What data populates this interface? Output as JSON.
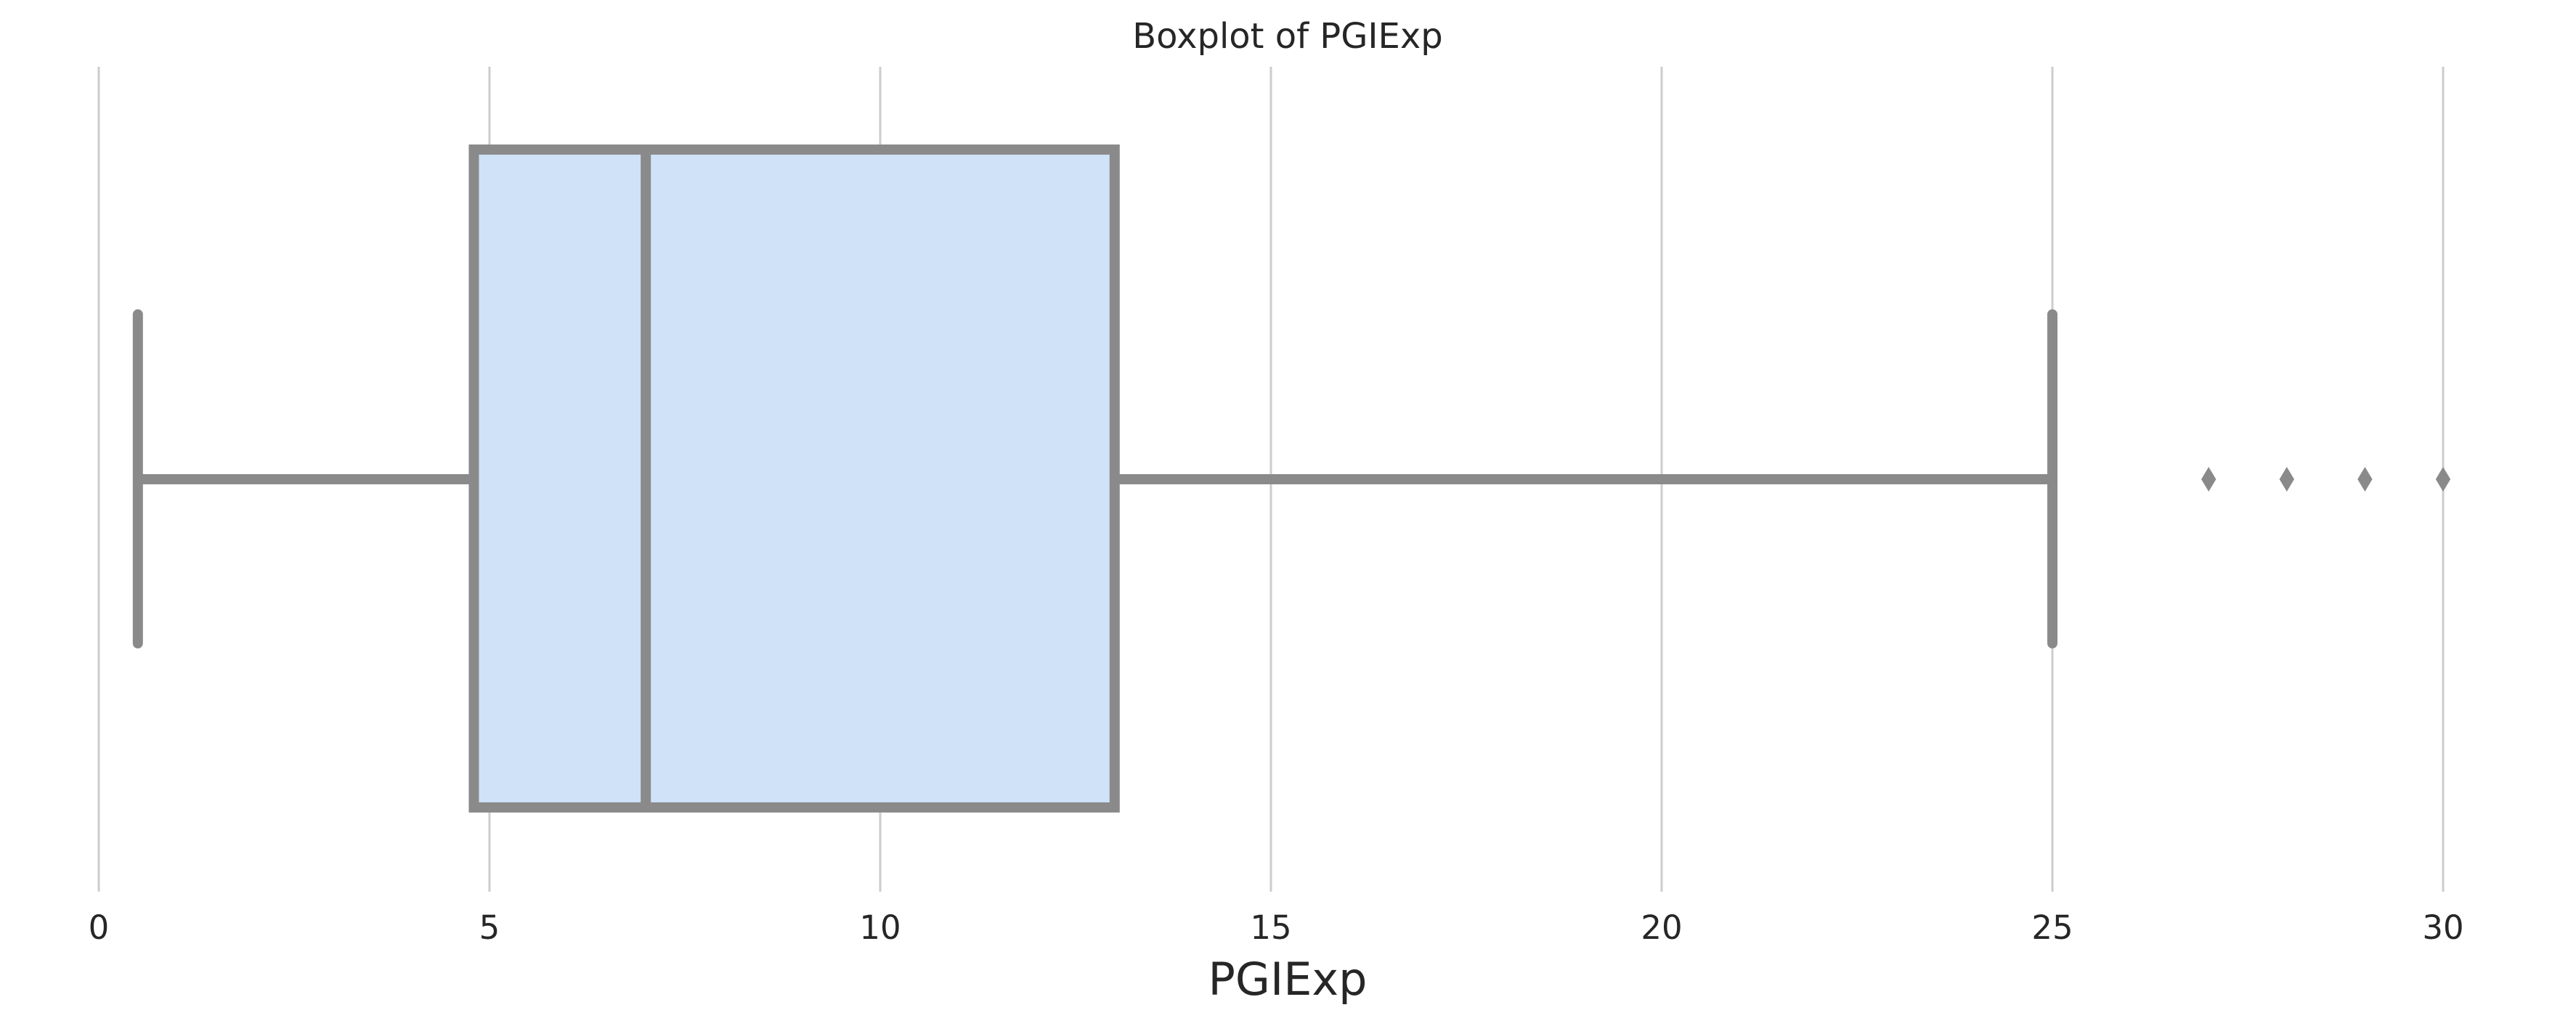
{
  "chart_data": {
    "type": "box",
    "title": "Boxplot of PGIExp",
    "xlabel": "PGIExp",
    "ylabel": "",
    "xlim": [
      0,
      30
    ],
    "xticks": [
      0,
      5,
      10,
      15,
      20,
      25,
      30
    ],
    "xtick_labels": [
      "0",
      "5",
      "10",
      "15",
      "20",
      "25",
      "30"
    ],
    "grid": true,
    "orientation": "horizontal",
    "box": {
      "whisker_low": 0.5,
      "q1": 4.8,
      "median": 7.0,
      "q3": 13.0,
      "whisker_high": 25.0
    },
    "outliers": [
      27,
      28,
      29,
      30
    ],
    "colors": {
      "box_fill": "#cfe2f8",
      "box_edge": "#8a8a8a",
      "grid": "#cccccc",
      "text": "#262626"
    }
  }
}
